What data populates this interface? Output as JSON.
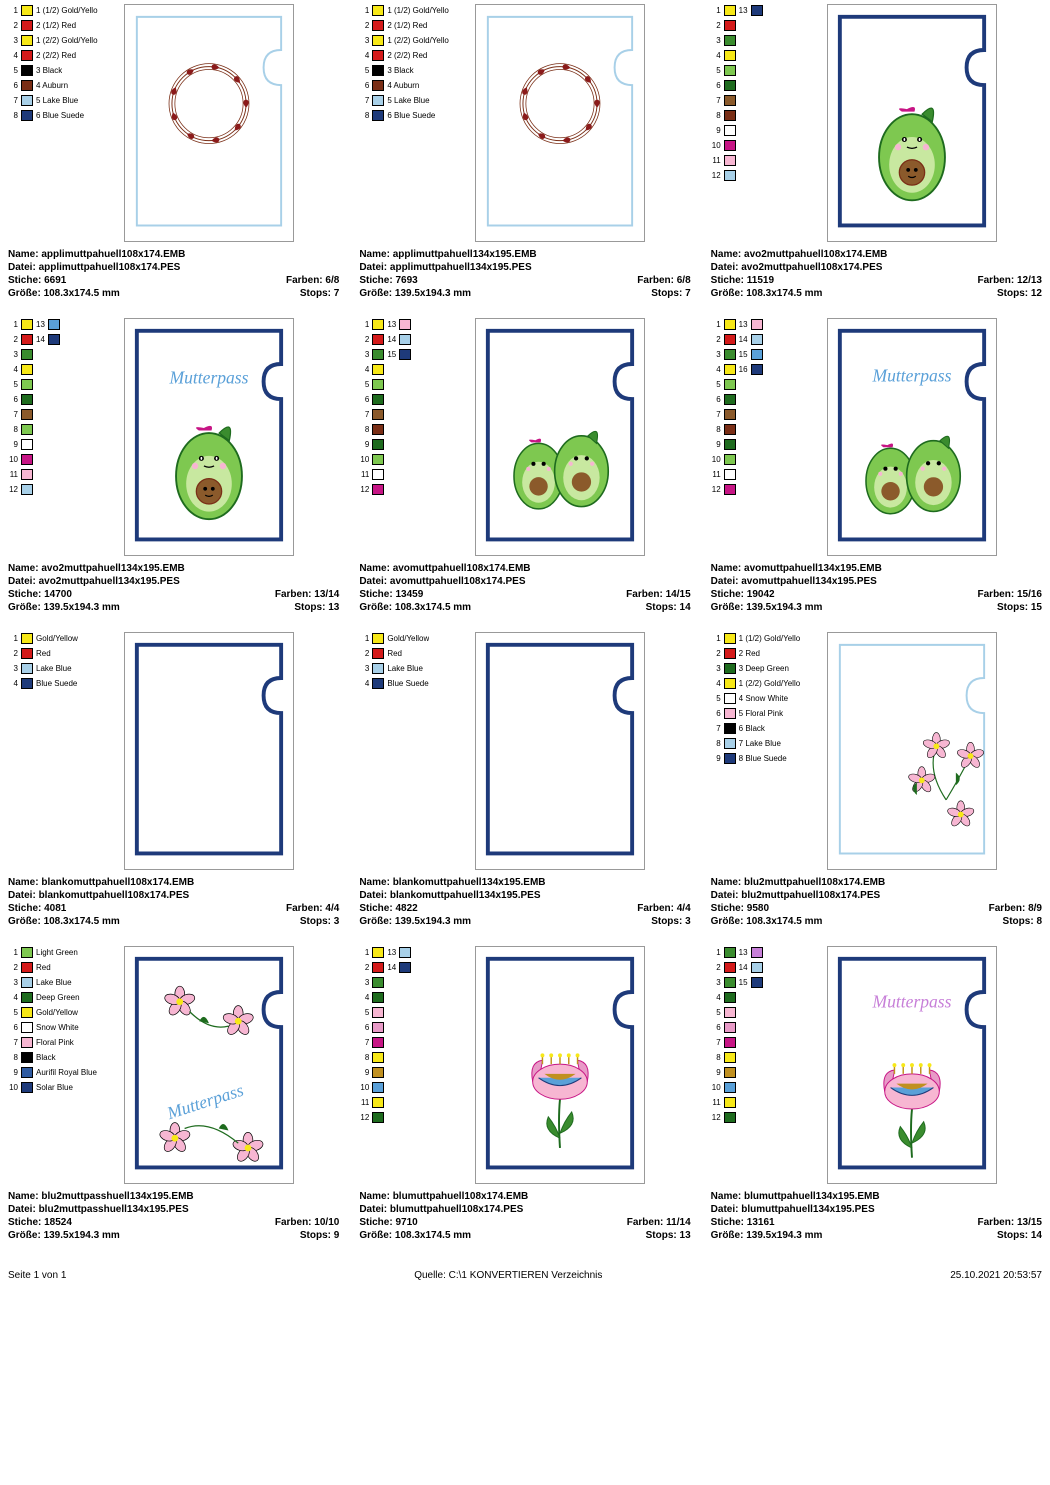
{
  "footer": {
    "page": "Seite 1 von 1",
    "source": "Quelle: C:\\1 KONVERTIEREN Verzeichnis",
    "date": "25.10.2021 20:53:57"
  },
  "labels": {
    "name": "Name:",
    "file": "Datei:",
    "stitches": "Stiche:",
    "colors": "Farben:",
    "size": "Größe:",
    "stops": "Stops:"
  },
  "items": [
    {
      "name": "applimuttpahuell108x174.EMB",
      "file": "applimuttpahuell108x174.PES",
      "stitches": "6691",
      "colors": "6/8",
      "size": "108.3x174.5 mm",
      "stops": "7",
      "palette": [
        {
          "n": "1",
          "c": "#f7e817",
          "l": "1 (1/2) Gold/Yello"
        },
        {
          "n": "2",
          "c": "#d41a1a",
          "l": "2 (1/2) Red"
        },
        {
          "n": "3",
          "c": "#f7e817",
          "l": "1 (2/2) Gold/Yello"
        },
        {
          "n": "4",
          "c": "#d41a1a",
          "l": "2 (2/2) Red"
        },
        {
          "n": "5",
          "c": "#000000",
          "l": "3 Black"
        },
        {
          "n": "6",
          "c": "#7a2e16",
          "l": "4 Auburn"
        },
        {
          "n": "7",
          "c": "#a8d0e8",
          "l": "5 Lake Blue"
        },
        {
          "n": "8",
          "c": "#1e3a7a",
          "l": "6 Blue Suede"
        }
      ],
      "design": "wreath-light"
    },
    {
      "name": "applimuttpahuell134x195.EMB",
      "file": "applimuttpahuell134x195.PES",
      "stitches": "7693",
      "colors": "6/8",
      "size": "139.5x194.3 mm",
      "stops": "7",
      "palette": [
        {
          "n": "1",
          "c": "#f7e817",
          "l": "1 (1/2) Gold/Yello"
        },
        {
          "n": "2",
          "c": "#d41a1a",
          "l": "2 (1/2) Red"
        },
        {
          "n": "3",
          "c": "#f7e817",
          "l": "1 (2/2) Gold/Yello"
        },
        {
          "n": "4",
          "c": "#d41a1a",
          "l": "2 (2/2) Red"
        },
        {
          "n": "5",
          "c": "#000000",
          "l": "3 Black"
        },
        {
          "n": "6",
          "c": "#7a2e16",
          "l": "4 Auburn"
        },
        {
          "n": "7",
          "c": "#a8d0e8",
          "l": "5 Lake Blue"
        },
        {
          "n": "8",
          "c": "#1e3a7a",
          "l": "6 Blue Suede"
        }
      ],
      "design": "wreath-light"
    },
    {
      "name": "avo2muttpahuell108x174.EMB",
      "file": "avo2muttpahuell108x174.PES",
      "stitches": "11519",
      "colors": "12/13",
      "size": "108.3x174.5 mm",
      "stops": "12",
      "palette": [
        {
          "n": "1",
          "c": "#f7e817",
          "l": "13",
          "c2": "#1e3a7a"
        },
        {
          "n": "2",
          "c": "#d41a1a",
          "l": ""
        },
        {
          "n": "3",
          "c": "#3a8c2e",
          "l": ""
        },
        {
          "n": "4",
          "c": "#f7e817",
          "l": ""
        },
        {
          "n": "5",
          "c": "#7ec850",
          "l": ""
        },
        {
          "n": "6",
          "c": "#1e6b1e",
          "l": ""
        },
        {
          "n": "7",
          "c": "#8b5a2b",
          "l": ""
        },
        {
          "n": "8",
          "c": "#7a2e16",
          "l": ""
        },
        {
          "n": "9",
          "c": "#ffffff",
          "l": ""
        },
        {
          "n": "10",
          "c": "#c71585",
          "l": ""
        },
        {
          "n": "11",
          "c": "#f7b6d2",
          "l": ""
        },
        {
          "n": "12",
          "c": "#a8d0e8",
          "l": ""
        }
      ],
      "design": "avocado-single"
    },
    {
      "name": "avo2muttpahuell134x195.EMB",
      "file": "avo2muttpahuell134x195.PES",
      "stitches": "14700",
      "colors": "13/14",
      "size": "139.5x194.3 mm",
      "stops": "13",
      "palette": [
        {
          "n": "1",
          "c": "#f7e817",
          "l": "13",
          "c2": "#5aa0d8"
        },
        {
          "n": "2",
          "c": "#d41a1a",
          "l": "14",
          "c2": "#1e3a7a"
        },
        {
          "n": "3",
          "c": "#3a8c2e",
          "l": ""
        },
        {
          "n": "4",
          "c": "#f7e817",
          "l": ""
        },
        {
          "n": "5",
          "c": "#7ec850",
          "l": ""
        },
        {
          "n": "6",
          "c": "#1e6b1e",
          "l": ""
        },
        {
          "n": "7",
          "c": "#8b5a2b",
          "l": ""
        },
        {
          "n": "8",
          "c": "#7ec850",
          "l": ""
        },
        {
          "n": "9",
          "c": "#ffffff",
          "l": ""
        },
        {
          "n": "10",
          "c": "#c71585",
          "l": ""
        },
        {
          "n": "11",
          "c": "#f7b6d2",
          "l": ""
        },
        {
          "n": "12",
          "c": "#a8d0e8",
          "l": ""
        }
      ],
      "design": "avocado-single-text"
    },
    {
      "name": "avomuttpahuell108x174.EMB",
      "file": "avomuttpahuell108x174.PES",
      "stitches": "13459",
      "colors": "14/15",
      "size": "108.3x174.5 mm",
      "stops": "14",
      "palette": [
        {
          "n": "1",
          "c": "#f7e817",
          "l": "13",
          "c2": "#f7b6d2"
        },
        {
          "n": "2",
          "c": "#d41a1a",
          "l": "14",
          "c2": "#a8d0e8"
        },
        {
          "n": "3",
          "c": "#3a8c2e",
          "l": "15",
          "c2": "#1e3a7a"
        },
        {
          "n": "4",
          "c": "#f7e817",
          "l": ""
        },
        {
          "n": "5",
          "c": "#7ec850",
          "l": ""
        },
        {
          "n": "6",
          "c": "#1e6b1e",
          "l": ""
        },
        {
          "n": "7",
          "c": "#8b5a2b",
          "l": ""
        },
        {
          "n": "8",
          "c": "#7a2e16",
          "l": ""
        },
        {
          "n": "9",
          "c": "#1e6b1e",
          "l": ""
        },
        {
          "n": "10",
          "c": "#7ec850",
          "l": ""
        },
        {
          "n": "11",
          "c": "#ffffff",
          "l": ""
        },
        {
          "n": "12",
          "c": "#c71585",
          "l": ""
        }
      ],
      "design": "avocado-pair"
    },
    {
      "name": "avomuttpahuell134x195.EMB",
      "file": "avomuttpahuell134x195.PES",
      "stitches": "19042",
      "colors": "15/16",
      "size": "139.5x194.3 mm",
      "stops": "15",
      "palette": [
        {
          "n": "1",
          "c": "#f7e817",
          "l": "13",
          "c2": "#f7b6d2"
        },
        {
          "n": "2",
          "c": "#d41a1a",
          "l": "14",
          "c2": "#a8d0e8"
        },
        {
          "n": "3",
          "c": "#3a8c2e",
          "l": "15",
          "c2": "#5aa0d8"
        },
        {
          "n": "4",
          "c": "#f7e817",
          "l": "16",
          "c2": "#1e3a7a"
        },
        {
          "n": "5",
          "c": "#7ec850",
          "l": ""
        },
        {
          "n": "6",
          "c": "#1e6b1e",
          "l": ""
        },
        {
          "n": "7",
          "c": "#8b5a2b",
          "l": ""
        },
        {
          "n": "8",
          "c": "#7a2e16",
          "l": ""
        },
        {
          "n": "9",
          "c": "#1e6b1e",
          "l": ""
        },
        {
          "n": "10",
          "c": "#7ec850",
          "l": ""
        },
        {
          "n": "11",
          "c": "#ffffff",
          "l": ""
        },
        {
          "n": "12",
          "c": "#c71585",
          "l": ""
        }
      ],
      "design": "avocado-pair-text"
    },
    {
      "name": "blankomuttpahuell108x174.EMB",
      "file": "blankomuttpahuell108x174.PES",
      "stitches": "4081",
      "colors": "4/4",
      "size": "108.3x174.5 mm",
      "stops": "3",
      "palette": [
        {
          "n": "1",
          "c": "#f7e817",
          "l": "Gold/Yellow"
        },
        {
          "n": "2",
          "c": "#d41a1a",
          "l": "Red"
        },
        {
          "n": "3",
          "c": "#a8d0e8",
          "l": "Lake Blue"
        },
        {
          "n": "4",
          "c": "#1e3a7a",
          "l": "Blue Suede"
        }
      ],
      "design": "blank"
    },
    {
      "name": "blankomuttpahuell134x195.EMB",
      "file": "blankomuttpahuell134x195.PES",
      "stitches": "4822",
      "colors": "4/4",
      "size": "139.5x194.3 mm",
      "stops": "3",
      "palette": [
        {
          "n": "1",
          "c": "#f7e817",
          "l": "Gold/Yellow"
        },
        {
          "n": "2",
          "c": "#d41a1a",
          "l": "Red"
        },
        {
          "n": "3",
          "c": "#a8d0e8",
          "l": "Lake Blue"
        },
        {
          "n": "4",
          "c": "#1e3a7a",
          "l": "Blue Suede"
        }
      ],
      "design": "blank"
    },
    {
      "name": "blu2muttpahuell108x174.EMB",
      "file": "blu2muttpahuell108x174.PES",
      "stitches": "9580",
      "colors": "8/9",
      "size": "108.3x174.5 mm",
      "stops": "8",
      "palette": [
        {
          "n": "1",
          "c": "#f7e817",
          "l": "1 (1/2) Gold/Yello"
        },
        {
          "n": "2",
          "c": "#d41a1a",
          "l": "2 Red"
        },
        {
          "n": "3",
          "c": "#1e6b1e",
          "l": "3 Deep Green"
        },
        {
          "n": "4",
          "c": "#f7e817",
          "l": "1 (2/2) Gold/Yello"
        },
        {
          "n": "5",
          "c": "#ffffff",
          "l": "4 Snow White"
        },
        {
          "n": "6",
          "c": "#f7b6d2",
          "l": "5 Floral Pink"
        },
        {
          "n": "7",
          "c": "#000000",
          "l": "6 Black"
        },
        {
          "n": "8",
          "c": "#a8d0e8",
          "l": "7 Lake Blue"
        },
        {
          "n": "9",
          "c": "#1e3a7a",
          "l": "8 Blue Suede"
        }
      ],
      "design": "flowers-corner-light"
    },
    {
      "name": "blu2muttpasshuell134x195.EMB",
      "file": "blu2muttpasshuell134x195.PES",
      "stitches": "18524",
      "colors": "10/10",
      "size": "139.5x194.3 mm",
      "stops": "9",
      "palette": [
        {
          "n": "1",
          "c": "#7ec850",
          "l": "Light Green"
        },
        {
          "n": "2",
          "c": "#d41a1a",
          "l": "Red"
        },
        {
          "n": "3",
          "c": "#a8d0e8",
          "l": "Lake Blue"
        },
        {
          "n": "4",
          "c": "#1e6b1e",
          "l": "Deep Green"
        },
        {
          "n": "5",
          "c": "#f7e817",
          "l": "Gold/Yellow"
        },
        {
          "n": "6",
          "c": "#ffffff",
          "l": "Snow White"
        },
        {
          "n": "7",
          "c": "#f7b6d2",
          "l": "Floral Pink"
        },
        {
          "n": "8",
          "c": "#000000",
          "l": "Black"
        },
        {
          "n": "9",
          "c": "#2e5aa0",
          "l": "Aurifil Royal Blue"
        },
        {
          "n": "10",
          "c": "#1e3a7a",
          "l": "Solar Blue"
        }
      ],
      "design": "flowers-full"
    },
    {
      "name": "blumuttpahuell108x174.EMB",
      "file": "blumuttpahuell108x174.PES",
      "stitches": "9710",
      "colors": "11/14",
      "size": "108.3x174.5 mm",
      "stops": "13",
      "palette": [
        {
          "n": "1",
          "c": "#f7e817",
          "l": "13",
          "c2": "#a8d0e8"
        },
        {
          "n": "2",
          "c": "#d41a1a",
          "l": "14",
          "c2": "#1e3a7a"
        },
        {
          "n": "3",
          "c": "#3a8c2e",
          "l": ""
        },
        {
          "n": "4",
          "c": "#1e6b1e",
          "l": ""
        },
        {
          "n": "5",
          "c": "#f7b6d2",
          "l": ""
        },
        {
          "n": "6",
          "c": "#e89ac7",
          "l": ""
        },
        {
          "n": "7",
          "c": "#c71585",
          "l": ""
        },
        {
          "n": "8",
          "c": "#f7e817",
          "l": ""
        },
        {
          "n": "9",
          "c": "#c09020",
          "l": ""
        },
        {
          "n": "10",
          "c": "#5aa0d8",
          "l": ""
        },
        {
          "n": "11",
          "c": "#f7e817",
          "l": ""
        },
        {
          "n": "12",
          "c": "#1e6b1e",
          "l": ""
        }
      ],
      "design": "tulip"
    },
    {
      "name": "blumuttpahuell134x195.EMB",
      "file": "blumuttpahuell134x195.PES",
      "stitches": "13161",
      "colors": "13/15",
      "size": "139.5x194.3 mm",
      "stops": "14",
      "palette": [
        {
          "n": "1",
          "c": "#3a8c2e",
          "l": "13",
          "c2": "#c77fd8"
        },
        {
          "n": "2",
          "c": "#d41a1a",
          "l": "14",
          "c2": "#a8d0e8"
        },
        {
          "n": "3",
          "c": "#3a8c2e",
          "l": "15",
          "c2": "#1e3a7a"
        },
        {
          "n": "4",
          "c": "#1e6b1e",
          "l": ""
        },
        {
          "n": "5",
          "c": "#f7b6d2",
          "l": ""
        },
        {
          "n": "6",
          "c": "#e89ac7",
          "l": ""
        },
        {
          "n": "7",
          "c": "#c71585",
          "l": ""
        },
        {
          "n": "8",
          "c": "#f7e817",
          "l": ""
        },
        {
          "n": "9",
          "c": "#c09020",
          "l": ""
        },
        {
          "n": "10",
          "c": "#5aa0d8",
          "l": ""
        },
        {
          "n": "11",
          "c": "#f7e817",
          "l": ""
        },
        {
          "n": "12",
          "c": "#1e6b1e",
          "l": ""
        }
      ],
      "design": "tulip-text"
    }
  ]
}
